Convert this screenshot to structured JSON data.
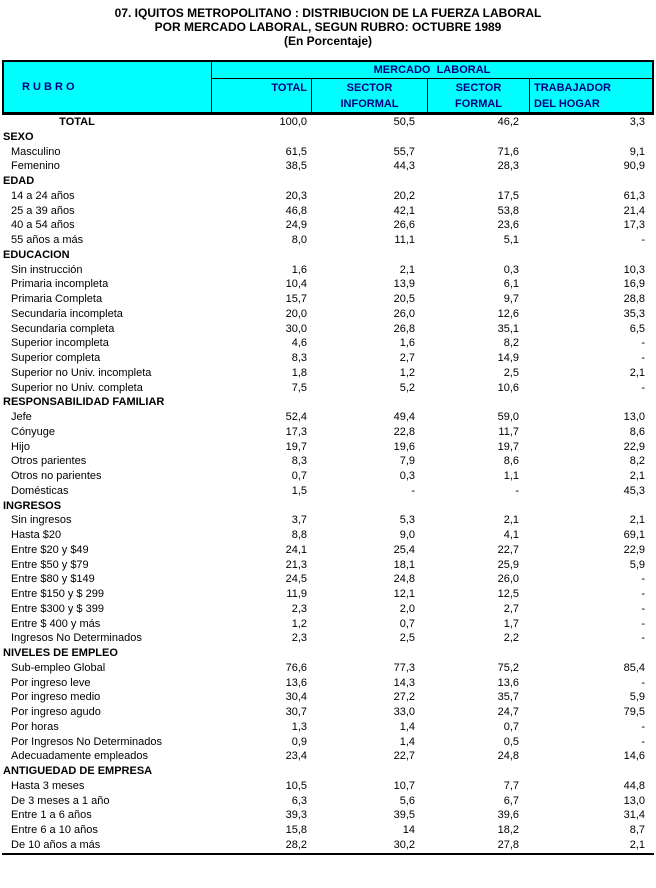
{
  "title": {
    "line1": "07. IQUITOS METROPOLITANO : DISTRIBUCION DE LA FUERZA LABORAL",
    "line2": "POR MERCADO LABORAL, SEGUN RUBRO: OCTUBRE 1989",
    "line3": "(En Porcentaje)"
  },
  "colors": {
    "header_bg": "#00ffff",
    "header_text": "#000080",
    "border": "#000000",
    "body_text": "#000000"
  },
  "table": {
    "header": {
      "rubro": "R U B R O",
      "group": "MERCADO  LABORAL",
      "columns": [
        "TOTAL",
        "SECTOR\nINFORMAL",
        "SECTOR\nFORMAL",
        "TRABAJADOR\nDEL HOGAR"
      ]
    },
    "rows": [
      {
        "type": "total",
        "label": "TOTAL",
        "values": [
          "100,0",
          "50,5",
          "46,2",
          "3,3"
        ]
      },
      {
        "type": "section",
        "label": "SEXO",
        "values": [
          "",
          "",
          "",
          ""
        ]
      },
      {
        "type": "item",
        "label": "Masculino",
        "values": [
          "61,5",
          "55,7",
          "71,6",
          "9,1"
        ]
      },
      {
        "type": "item",
        "label": "Femenino",
        "values": [
          "38,5",
          "44,3",
          "28,3",
          "90,9"
        ]
      },
      {
        "type": "section",
        "label": "EDAD",
        "values": [
          "",
          "",
          "",
          ""
        ]
      },
      {
        "type": "item",
        "label": "14 a 24 años",
        "values": [
          "20,3",
          "20,2",
          "17,5",
          "61,3"
        ]
      },
      {
        "type": "item",
        "label": "25 a 39 años",
        "values": [
          "46,8",
          "42,1",
          "53,8",
          "21,4"
        ]
      },
      {
        "type": "item",
        "label": "40 a 54 años",
        "values": [
          "24,9",
          "26,6",
          "23,6",
          "17,3"
        ]
      },
      {
        "type": "item",
        "label": "55 años a más",
        "values": [
          "8,0",
          "11,1",
          "5,1",
          "-"
        ]
      },
      {
        "type": "section",
        "label": "EDUCACION",
        "values": [
          "",
          "",
          "",
          ""
        ]
      },
      {
        "type": "item",
        "label": "Sin instrucción",
        "values": [
          "1,6",
          "2,1",
          "0,3",
          "10,3"
        ]
      },
      {
        "type": "item",
        "label": "Primaria incompleta",
        "values": [
          "10,4",
          "13,9",
          "6,1",
          "16,9"
        ]
      },
      {
        "type": "item",
        "label": "Primaria Completa",
        "values": [
          "15,7",
          "20,5",
          "9,7",
          "28,8"
        ]
      },
      {
        "type": "item",
        "label": "Secundaria incompleta",
        "values": [
          "20,0",
          "26,0",
          "12,6",
          "35,3"
        ]
      },
      {
        "type": "item",
        "label": "Secundaria completa",
        "values": [
          "30,0",
          "26,8",
          "35,1",
          "6,5"
        ]
      },
      {
        "type": "item",
        "label": "Superior incompleta",
        "values": [
          "4,6",
          "1,6",
          "8,2",
          "-"
        ]
      },
      {
        "type": "item",
        "label": "Superior completa",
        "values": [
          "8,3",
          "2,7",
          "14,9",
          "-"
        ]
      },
      {
        "type": "item",
        "label": "Superior no Univ. incompleta",
        "values": [
          "1,8",
          "1,2",
          "2,5",
          "2,1"
        ]
      },
      {
        "type": "item",
        "label": "Superior no Univ. completa",
        "values": [
          "7,5",
          "5,2",
          "10,6",
          "-"
        ]
      },
      {
        "type": "section",
        "label": "RESPONSABILIDAD FAMILIAR",
        "values": [
          "",
          "",
          "",
          ""
        ]
      },
      {
        "type": "item",
        "label": "Jefe",
        "values": [
          "52,4",
          "49,4",
          "59,0",
          "13,0"
        ]
      },
      {
        "type": "item",
        "label": "Cónyuge",
        "values": [
          "17,3",
          "22,8",
          "11,7",
          "8,6"
        ]
      },
      {
        "type": "item",
        "label": "Hijo",
        "values": [
          "19,7",
          "19,6",
          "19,7",
          "22,9"
        ]
      },
      {
        "type": "item",
        "label": "Otros parientes",
        "values": [
          "8,3",
          "7,9",
          "8,6",
          "8,2"
        ]
      },
      {
        "type": "item",
        "label": "Otros no parientes",
        "values": [
          "0,7",
          "0,3",
          "1,1",
          "2,1"
        ]
      },
      {
        "type": "item",
        "label": "Domésticas",
        "values": [
          "1,5",
          "-",
          "-",
          "45,3"
        ]
      },
      {
        "type": "section",
        "label": "INGRESOS",
        "values": [
          "",
          "",
          "",
          ""
        ]
      },
      {
        "type": "item",
        "label": "Sin ingresos",
        "values": [
          "3,7",
          "5,3",
          "2,1",
          "2,1"
        ]
      },
      {
        "type": "item",
        "label": "Hasta $20",
        "values": [
          "8,8",
          "9,0",
          "4,1",
          "69,1"
        ]
      },
      {
        "type": "item",
        "label": "Entre $20 y $49",
        "values": [
          "24,1",
          "25,4",
          "22,7",
          "22,9"
        ]
      },
      {
        "type": "item",
        "label": "Entre $50 y $79",
        "values": [
          "21,3",
          "18,1",
          "25,9",
          "5,9"
        ]
      },
      {
        "type": "item",
        "label": "Entre $80 y $149",
        "values": [
          "24,5",
          "24,8",
          "26,0",
          "-"
        ]
      },
      {
        "type": "item",
        "label": "Entre $150 y $ 299",
        "values": [
          "11,9",
          "12,1",
          "12,5",
          "-"
        ]
      },
      {
        "type": "item",
        "label": "Entre $300 y $ 399",
        "values": [
          "2,3",
          "2,0",
          "2,7",
          "-"
        ]
      },
      {
        "type": "item",
        "label": "Entre $ 400 y más",
        "values": [
          "1,2",
          "0,7",
          "1,7",
          "-"
        ]
      },
      {
        "type": "item",
        "label": "Ingresos No Determinados",
        "values": [
          "2,3",
          "2,5",
          "2,2",
          "-"
        ]
      },
      {
        "type": "section",
        "label": "NIVELES DE EMPLEO",
        "values": [
          "",
          "",
          "",
          ""
        ]
      },
      {
        "type": "item",
        "label": "Sub-empleo Global",
        "values": [
          "76,6",
          "77,3",
          "75,2",
          "85,4"
        ]
      },
      {
        "type": "item",
        "label": "Por ingreso leve",
        "values": [
          "13,6",
          "14,3",
          "13,6",
          "-"
        ]
      },
      {
        "type": "item",
        "label": "Por ingreso medio",
        "values": [
          "30,4",
          "27,2",
          "35,7",
          "5,9"
        ]
      },
      {
        "type": "item",
        "label": "Por ingreso agudo",
        "values": [
          "30,7",
          "33,0",
          "24,7",
          "79,5"
        ]
      },
      {
        "type": "item",
        "label": "Por horas",
        "values": [
          "1,3",
          "1,4",
          "0,7",
          "-"
        ]
      },
      {
        "type": "item",
        "label": "Por Ingresos No Determinados",
        "values": [
          "0,9",
          "1,4",
          "0,5",
          "-"
        ]
      },
      {
        "type": "item",
        "label": "Adecuadamente empleados",
        "values": [
          "23,4",
          "22,7",
          "24,8",
          "14,6"
        ]
      },
      {
        "type": "section",
        "label": "ANTIGUEDAD DE EMPRESA",
        "values": [
          "",
          "",
          "",
          ""
        ]
      },
      {
        "type": "item",
        "label": "Hasta 3 meses",
        "values": [
          "10,5",
          "10,7",
          "7,7",
          "44,8"
        ]
      },
      {
        "type": "item",
        "label": "De 3 meses a 1 año",
        "values": [
          "6,3",
          "5,6",
          "6,7",
          "13,0"
        ]
      },
      {
        "type": "item",
        "label": "Entre 1 a 6 años",
        "values": [
          "39,3",
          "39,5",
          "39,6",
          "31,4"
        ]
      },
      {
        "type": "item",
        "label": "Entre 6 a 10 años",
        "values": [
          "15,8",
          "14",
          "18,2",
          "8,7"
        ]
      },
      {
        "type": "item",
        "label": "De 10 años a más",
        "values": [
          "28,2",
          "30,2",
          "27,8",
          "2,1"
        ]
      }
    ]
  }
}
